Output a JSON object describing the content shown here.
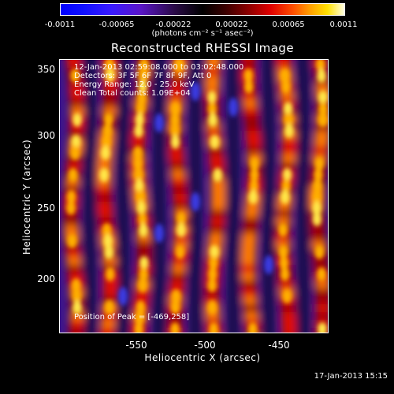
{
  "colorbar": {
    "ticks": [
      "-0.0011",
      "-0.00065",
      "-0.00022",
      "0.00022",
      "0.00065",
      "0.0011"
    ],
    "units": "(photons cm⁻² s⁻¹ asec⁻²)"
  },
  "title": "Reconstructed RHESSI Image",
  "info": {
    "time": "12-Jan-2013 02:59:08.000 to 03:02:48.000",
    "detectors": "Detectors: 3F 5F 6F 7F 8F 9F, Att 0",
    "energy": "Energy Range: 12.0 - 25.0 keV",
    "method": "Clean     Total counts: 1.09E+04"
  },
  "peak": "Position of Peak = [-469,258]",
  "axes": {
    "xlabel": "Heliocentric X (arcsec)",
    "ylabel": "Heliocentric Y (arcsec)",
    "xticks": [
      "-550",
      "-500",
      "-450"
    ],
    "yticks": [
      "350",
      "300",
      "250",
      "200"
    ]
  },
  "footer_date": "17-Jan-2013 15:15",
  "colors": {
    "background": "#000000",
    "foreground": "#ffffff",
    "colormap": [
      "#0000ff",
      "#5a16c8",
      "#000000",
      "#e00000",
      "#ffa000",
      "#ffffe6"
    ]
  }
}
